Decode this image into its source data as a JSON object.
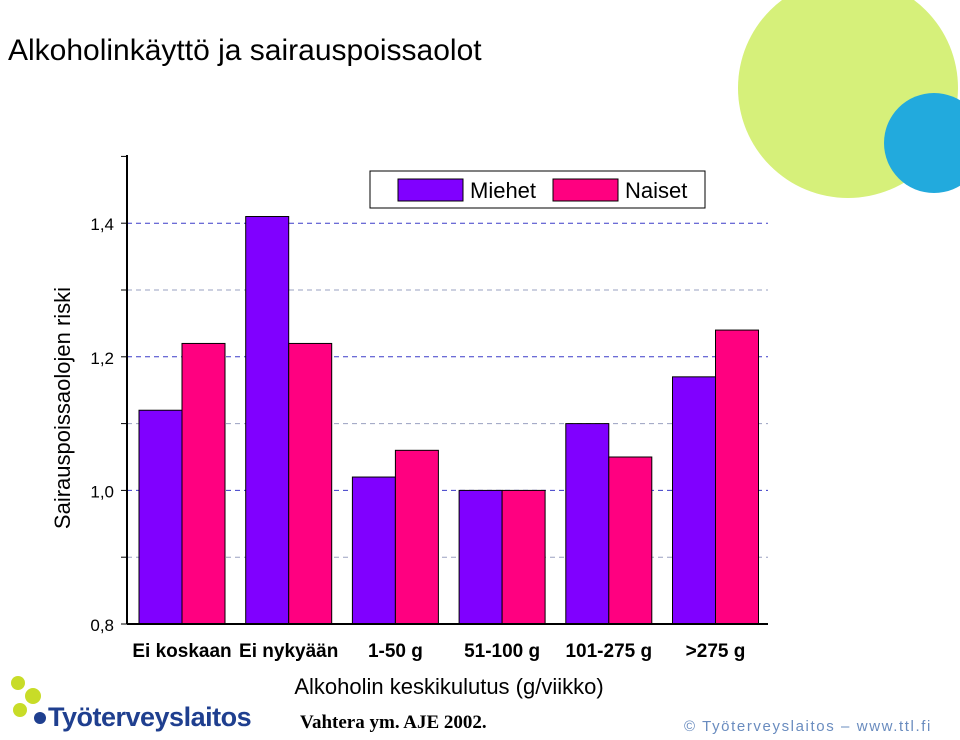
{
  "title": "Alkoholinkäyttö ja sairauspoissaolot",
  "citation": "Vahtera ym. AJE 2002.",
  "logo_text": "Työterveyslaitos",
  "copyright": "© Työterveyslaitos  –  www.ttl.fi",
  "colors": {
    "miehet": "#8000ff",
    "naiset": "#ff0080",
    "decor_green": "#d6f07a",
    "decor_blue": "#22aadd",
    "logo_green": "#c8dc28",
    "logo_blue": "#1f3f8f"
  },
  "chart_data": {
    "type": "bar",
    "title": "",
    "xlabel": "Alkoholin keskikulutus (g/viikko)",
    "ylabel": "Sairauspoissaolojen riski",
    "categories": [
      "Ei koskaan",
      "Ei nykyään",
      "1-50 g",
      "51-100 g",
      "101-275 g",
      ">275 g"
    ],
    "series": [
      {
        "name": "Miehet",
        "values": [
          1.12,
          1.41,
          1.02,
          1.0,
          1.1,
          1.17
        ]
      },
      {
        "name": "Naiset",
        "values": [
          1.22,
          1.22,
          1.06,
          1.0,
          1.05,
          1.24
        ]
      }
    ],
    "ylim": [
      0.8,
      1.5
    ],
    "yticks": [
      {
        "value": 0.8,
        "label": "0,8"
      },
      {
        "value": 1.0,
        "label": "1,0"
      },
      {
        "value": 1.2,
        "label": "1,2"
      },
      {
        "value": 1.4,
        "label": "1,4"
      }
    ],
    "grid": true,
    "legend_position": "top-right"
  }
}
